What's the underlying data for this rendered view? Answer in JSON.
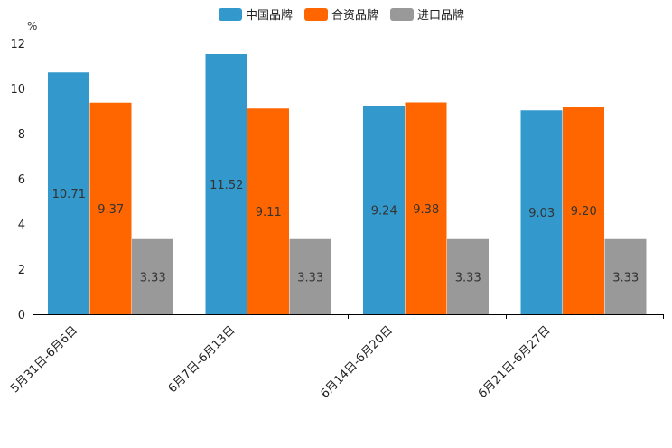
{
  "chart_data": {
    "type": "bar",
    "title": "",
    "xlabel": "",
    "ylabel": "%",
    "ylim": [
      0,
      12
    ],
    "yticks": [
      0,
      2,
      4,
      6,
      8,
      10,
      12
    ],
    "grid": false,
    "legend_position": "top-center",
    "categories": [
      "5月31日-6月6日",
      "6月7日-6月13日",
      "6月14日-6月20日",
      "6月21日-6月27日"
    ],
    "series": [
      {
        "name": "中国品牌",
        "color": "#3399CC",
        "values": [
          10.71,
          11.52,
          9.24,
          9.03
        ],
        "labels": [
          "10.71",
          "11.52",
          "9.24",
          "9.03"
        ]
      },
      {
        "name": "合资品牌",
        "color": "#FF6600",
        "values": [
          9.37,
          9.11,
          9.38,
          9.2
        ],
        "labels": [
          "9.37",
          "9.11",
          "9.38",
          "9.20"
        ]
      },
      {
        "name": "进口品牌",
        "color": "#999999",
        "values": [
          3.33,
          3.33,
          3.33,
          3.33
        ],
        "labels": [
          "3.33",
          "3.33",
          "3.33",
          "3.33"
        ]
      }
    ]
  }
}
